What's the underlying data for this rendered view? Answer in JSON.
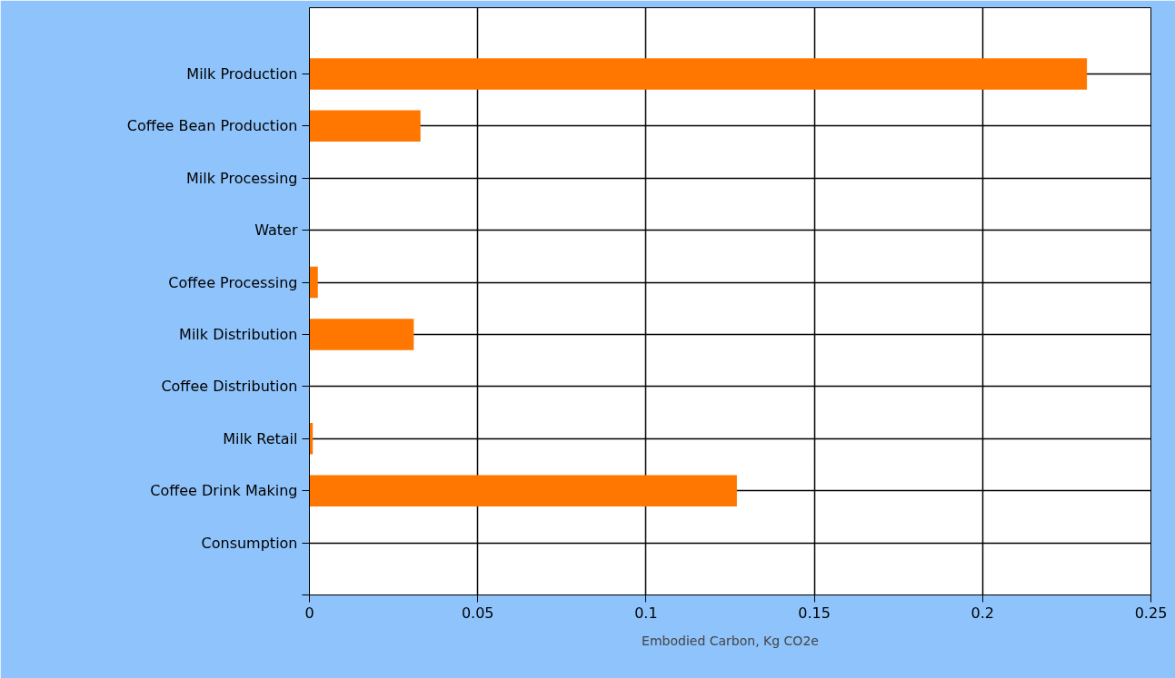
{
  "chart_data": {
    "type": "bar",
    "orientation": "horizontal",
    "xlabel": "Embodied Carbon, Kg CO2e",
    "categories": [
      "Milk Production",
      "Coffee Bean Production",
      "Milk Processing",
      "Water",
      "Coffee Processing",
      "Milk Distribution",
      "Coffee Distribution",
      "Milk Retail",
      "Coffee Drink Making",
      "Consumption"
    ],
    "values": [
      0.231,
      0.033,
      0,
      0,
      0.0025,
      0.031,
      0,
      0.001,
      0.127,
      0
    ],
    "color": "#ff7700",
    "xlim": [
      0,
      0.25
    ],
    "xticks": [
      0,
      {
        "value": 0.05,
        "label": "0.05"
      },
      {
        "value": 0.1,
        "label": "0.1"
      },
      {
        "value": 0.15,
        "label": "0.15"
      },
      {
        "value": 0.2,
        "label": "0.2"
      },
      {
        "value": 0.25,
        "label": "0.25"
      }
    ],
    "grid": true
  }
}
